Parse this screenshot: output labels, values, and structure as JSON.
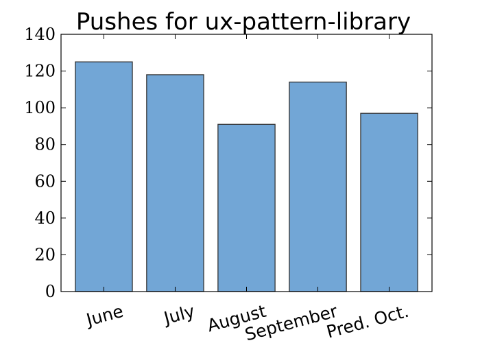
{
  "chart_data": {
    "type": "bar",
    "title": "Pushes for ux-pattern-library",
    "xlabel": "",
    "ylabel": "",
    "categories": [
      "June",
      "July",
      "August",
      "September",
      "Pred. Oct."
    ],
    "values": [
      125,
      118,
      91,
      114,
      97
    ],
    "ylim": [
      0,
      140
    ],
    "yticks": [
      0,
      20,
      40,
      60,
      80,
      100,
      120,
      140
    ],
    "bar_color": "#72a6d6",
    "edge_color": "#333333",
    "grid": false,
    "legend": "none"
  }
}
